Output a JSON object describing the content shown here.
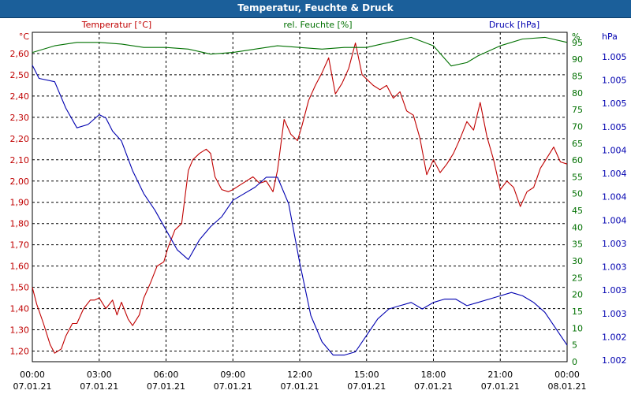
{
  "chart_data": {
    "type": "line",
    "title": "Temperatur, Feuchte & Druck",
    "x_ticks": [
      {
        "time": "00:00",
        "date": "07.01.21"
      },
      {
        "time": "03:00",
        "date": "07.01.21"
      },
      {
        "time": "06:00",
        "date": "07.01.21"
      },
      {
        "time": "09:00",
        "date": "07.01.21"
      },
      {
        "time": "12:00",
        "date": "07.01.21"
      },
      {
        "time": "15:00",
        "date": "07.01.21"
      },
      {
        "time": "18:00",
        "date": "07.01.21"
      },
      {
        "time": "21:00",
        "date": "07.01.21"
      },
      {
        "time": "00:00",
        "date": "08.01.21"
      }
    ],
    "x_range_hours": [
      0,
      24
    ],
    "grid": true,
    "axes": {
      "temperature": {
        "label": "Temperatur [°C]",
        "unit": "°C",
        "ticks": [
          "1,20",
          "1,30",
          "1,40",
          "1,50",
          "1,60",
          "1,70",
          "1,80",
          "1,90",
          "2,00",
          "2,10",
          "2,20",
          "2,30",
          "2,40",
          "2,50",
          "2,60"
        ],
        "range": [
          1.15,
          2.7
        ],
        "color": "#c00000"
      },
      "humidity": {
        "label": "rel. Feuchte [%]",
        "unit": "%",
        "ticks": [
          "0",
          "5",
          "10",
          "15",
          "20",
          "25",
          "30",
          "35",
          "40",
          "45",
          "50",
          "55",
          "60",
          "65",
          "70",
          "75",
          "80",
          "85",
          "90",
          "95"
        ],
        "range": [
          0,
          98
        ],
        "color": "#007000"
      },
      "pressure": {
        "label": "Druck [hPa]",
        "unit": "hPa",
        "ticks": [
          "1.002",
          "1.002",
          "1.003",
          "1.003",
          "1.003",
          "1.003",
          "1.004",
          "1.004",
          "1.004",
          "1.004",
          "1.005",
          "1.005",
          "1.005",
          "1.005"
        ],
        "range": [
          0,
          100
        ],
        "color": "#0000b0"
      }
    },
    "series": [
      {
        "name": "Temperatur [°C]",
        "axis": "temperature",
        "color": "#c00000",
        "x": [
          0,
          0.2,
          0.5,
          0.8,
          1.0,
          1.3,
          1.5,
          1.8,
          2.0,
          2.3,
          2.6,
          2.8,
          3.0,
          3.3,
          3.6,
          3.8,
          4.0,
          4.3,
          4.5,
          4.8,
          5.0,
          5.3,
          5.6,
          5.9,
          6.1,
          6.4,
          6.7,
          7.0,
          7.2,
          7.5,
          7.8,
          8.0,
          8.2,
          8.5,
          8.8,
          9.0,
          9.3,
          9.6,
          9.9,
          10.2,
          10.5,
          10.8,
          11.0,
          11.3,
          11.6,
          11.9,
          12.1,
          12.4,
          12.7,
          13.0,
          13.3,
          13.6,
          13.9,
          14.2,
          14.5,
          14.8,
          15.0,
          15.3,
          15.6,
          15.9,
          16.2,
          16.5,
          16.8,
          17.1,
          17.4,
          17.7,
          18.0,
          18.3,
          18.6,
          18.9,
          19.2,
          19.5,
          19.8,
          20.1,
          20.4,
          20.7,
          21.0,
          21.3,
          21.6,
          21.9,
          22.2,
          22.5,
          22.8,
          23.1,
          23.4,
          23.7,
          24.0
        ],
        "values": [
          1.5,
          1.42,
          1.33,
          1.23,
          1.19,
          1.21,
          1.27,
          1.33,
          1.33,
          1.4,
          1.44,
          1.44,
          1.45,
          1.4,
          1.44,
          1.37,
          1.43,
          1.35,
          1.32,
          1.37,
          1.45,
          1.52,
          1.6,
          1.62,
          1.69,
          1.77,
          1.8,
          2.05,
          2.1,
          2.13,
          2.15,
          2.13,
          2.02,
          1.96,
          1.95,
          1.96,
          1.98,
          2.0,
          2.02,
          1.99,
          2.0,
          1.95,
          2.05,
          2.29,
          2.22,
          2.19,
          2.26,
          2.38,
          2.45,
          2.51,
          2.58,
          2.41,
          2.46,
          2.53,
          2.65,
          2.5,
          2.48,
          2.45,
          2.43,
          2.45,
          2.39,
          2.42,
          2.33,
          2.31,
          2.2,
          2.03,
          2.1,
          2.04,
          2.08,
          2.13,
          2.2,
          2.28,
          2.24,
          2.37,
          2.21,
          2.1,
          1.96,
          2.0,
          1.97,
          1.88,
          1.95,
          1.97,
          2.06,
          2.11,
          2.16,
          2.09,
          2.08
        ]
      },
      {
        "name": "rel. Feuchte [%]",
        "axis": "humidity",
        "color": "#007000",
        "x": [
          0,
          1,
          2,
          3,
          4,
          5,
          6,
          7,
          8,
          9,
          10,
          11,
          12,
          13,
          14,
          15,
          16,
          17,
          18,
          18.8,
          19.5,
          20,
          21,
          22,
          23,
          24
        ],
        "values": [
          92,
          94,
          95,
          95,
          94.5,
          93.5,
          93.5,
          93,
          91.5,
          92,
          93,
          94,
          93.5,
          93,
          93.5,
          93.5,
          95,
          96.5,
          94,
          88,
          89,
          91,
          94,
          96,
          96.5,
          95
        ]
      },
      {
        "name": "Druck [hPa]",
        "axis": "pressure",
        "color": "#0000b0",
        "x": [
          0,
          0.3,
          1,
          1.5,
          2,
          2.5,
          3,
          3.3,
          3.6,
          4,
          4.5,
          5,
          5.5,
          6,
          6.5,
          7,
          7.5,
          8,
          8.5,
          9,
          9.5,
          10,
          10.5,
          11,
          11.5,
          12,
          12.5,
          13,
          13.5,
          14,
          14.5,
          15,
          15.5,
          16,
          16.5,
          17,
          17.5,
          18,
          18.5,
          19,
          19.5,
          20,
          20.5,
          21,
          21.5,
          22,
          22.5,
          23,
          23.5,
          24
        ],
        "values": [
          90,
          86,
          85,
          77,
          71,
          72,
          75,
          74,
          70,
          67,
          58,
          51,
          46,
          40,
          34,
          31,
          37,
          41,
          44,
          49,
          51,
          53,
          56,
          56,
          48,
          30,
          14,
          6,
          2,
          2,
          3,
          8,
          13,
          16,
          17,
          18,
          16,
          18,
          19,
          19,
          17,
          18,
          19,
          20,
          21,
          20,
          18,
          15,
          10,
          5
        ]
      }
    ]
  }
}
